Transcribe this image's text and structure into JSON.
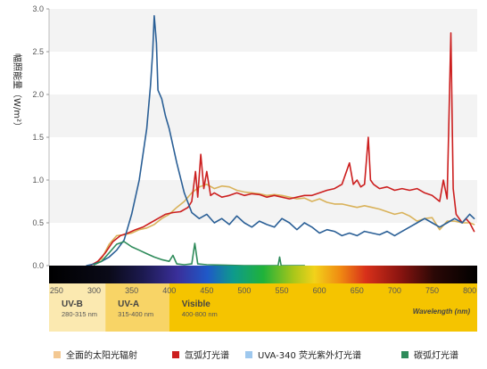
{
  "chart_data": {
    "type": "line",
    "ylabel": "幅照能量（W/m²）",
    "xlabel": "Wavelength (nm)",
    "xlim": [
      240,
      810
    ],
    "ylim": [
      0,
      3.0
    ],
    "x_ticks": [
      250,
      300,
      350,
      400,
      450,
      500,
      550,
      600,
      650,
      700,
      750,
      800
    ],
    "y_ticks": [
      "0.0",
      "0.5",
      "1.0",
      "1.5",
      "2.0",
      "2.5",
      "3.0"
    ],
    "bands": [
      {
        "name": "UV-B",
        "range": "280-315 nm",
        "from": 240,
        "to": 315,
        "color": "#fbe9b0"
      },
      {
        "name": "UV-A",
        "range": "315-400 nm",
        "from": 315,
        "to": 400,
        "color": "#f8d466"
      },
      {
        "name": "Visible",
        "range": "400-800 nm",
        "from": 400,
        "to": 810,
        "color": "#f5c400"
      }
    ],
    "legend_position": "bottom",
    "grid": "alternating horizontal bands",
    "series": [
      {
        "name": "全面的太阳光辐射",
        "color": "#d9b25a",
        "points": [
          [
            300,
            0.01
          ],
          [
            310,
            0.08
          ],
          [
            320,
            0.25
          ],
          [
            330,
            0.35
          ],
          [
            340,
            0.36
          ],
          [
            350,
            0.38
          ],
          [
            360,
            0.42
          ],
          [
            370,
            0.44
          ],
          [
            380,
            0.48
          ],
          [
            390,
            0.55
          ],
          [
            400,
            0.6
          ],
          [
            410,
            0.68
          ],
          [
            420,
            0.75
          ],
          [
            430,
            0.85
          ],
          [
            440,
            0.92
          ],
          [
            450,
            0.95
          ],
          [
            460,
            0.9
          ],
          [
            470,
            0.93
          ],
          [
            480,
            0.92
          ],
          [
            490,
            0.88
          ],
          [
            500,
            0.86
          ],
          [
            510,
            0.85
          ],
          [
            520,
            0.84
          ],
          [
            530,
            0.82
          ],
          [
            540,
            0.83
          ],
          [
            550,
            0.82
          ],
          [
            560,
            0.8
          ],
          [
            570,
            0.78
          ],
          [
            580,
            0.79
          ],
          [
            590,
            0.75
          ],
          [
            600,
            0.78
          ],
          [
            610,
            0.74
          ],
          [
            620,
            0.72
          ],
          [
            630,
            0.72
          ],
          [
            640,
            0.7
          ],
          [
            650,
            0.68
          ],
          [
            660,
            0.7
          ],
          [
            670,
            0.68
          ],
          [
            680,
            0.66
          ],
          [
            690,
            0.63
          ],
          [
            700,
            0.6
          ],
          [
            710,
            0.62
          ],
          [
            720,
            0.58
          ],
          [
            730,
            0.52
          ],
          [
            740,
            0.55
          ],
          [
            750,
            0.56
          ],
          [
            760,
            0.42
          ],
          [
            770,
            0.52
          ],
          [
            780,
            0.52
          ],
          [
            790,
            0.5
          ],
          [
            800,
            0.5
          ],
          [
            806,
            0.48
          ]
        ]
      },
      {
        "name": "氙弧灯光谱",
        "color": "#cc1f1f",
        "points": [
          [
            295,
            0.0
          ],
          [
            305,
            0.05
          ],
          [
            315,
            0.15
          ],
          [
            325,
            0.28
          ],
          [
            335,
            0.35
          ],
          [
            345,
            0.38
          ],
          [
            355,
            0.42
          ],
          [
            365,
            0.45
          ],
          [
            375,
            0.5
          ],
          [
            385,
            0.55
          ],
          [
            395,
            0.6
          ],
          [
            405,
            0.62
          ],
          [
            415,
            0.63
          ],
          [
            425,
            0.68
          ],
          [
            430,
            0.75
          ],
          [
            435,
            1.1
          ],
          [
            438,
            0.8
          ],
          [
            442,
            1.3
          ],
          [
            446,
            0.9
          ],
          [
            450,
            1.1
          ],
          [
            455,
            0.82
          ],
          [
            460,
            0.85
          ],
          [
            470,
            0.8
          ],
          [
            480,
            0.82
          ],
          [
            490,
            0.85
          ],
          [
            500,
            0.82
          ],
          [
            510,
            0.84
          ],
          [
            520,
            0.83
          ],
          [
            530,
            0.8
          ],
          [
            540,
            0.82
          ],
          [
            550,
            0.8
          ],
          [
            560,
            0.78
          ],
          [
            570,
            0.8
          ],
          [
            580,
            0.82
          ],
          [
            590,
            0.82
          ],
          [
            600,
            0.85
          ],
          [
            610,
            0.88
          ],
          [
            620,
            0.9
          ],
          [
            630,
            0.95
          ],
          [
            640,
            1.2
          ],
          [
            645,
            0.95
          ],
          [
            650,
            1.0
          ],
          [
            655,
            0.92
          ],
          [
            660,
            0.95
          ],
          [
            665,
            1.5
          ],
          [
            668,
            1.0
          ],
          [
            672,
            0.95
          ],
          [
            680,
            0.9
          ],
          [
            690,
            0.92
          ],
          [
            700,
            0.88
          ],
          [
            710,
            0.9
          ],
          [
            720,
            0.88
          ],
          [
            730,
            0.9
          ],
          [
            740,
            0.85
          ],
          [
            750,
            0.82
          ],
          [
            760,
            0.75
          ],
          [
            765,
            1.0
          ],
          [
            770,
            0.78
          ],
          [
            775,
            2.72
          ],
          [
            778,
            0.9
          ],
          [
            782,
            0.6
          ],
          [
            790,
            0.5
          ],
          [
            795,
            0.55
          ],
          [
            800,
            0.5
          ],
          [
            806,
            0.4
          ]
        ]
      },
      {
        "name": "UVA-340 荧光紫外灯光谱",
        "color": "#2a5f96",
        "points": [
          [
            290,
            0.0
          ],
          [
            300,
            0.02
          ],
          [
            310,
            0.05
          ],
          [
            320,
            0.1
          ],
          [
            330,
            0.18
          ],
          [
            340,
            0.3
          ],
          [
            350,
            0.6
          ],
          [
            360,
            1.0
          ],
          [
            365,
            1.3
          ],
          [
            370,
            1.6
          ],
          [
            375,
            2.1
          ],
          [
            378,
            2.5
          ],
          [
            380,
            2.92
          ],
          [
            383,
            2.6
          ],
          [
            385,
            2.05
          ],
          [
            390,
            1.95
          ],
          [
            395,
            1.75
          ],
          [
            400,
            1.6
          ],
          [
            410,
            1.2
          ],
          [
            420,
            0.85
          ],
          [
            430,
            0.62
          ],
          [
            440,
            0.55
          ],
          [
            450,
            0.6
          ],
          [
            460,
            0.5
          ],
          [
            470,
            0.55
          ],
          [
            480,
            0.48
          ],
          [
            490,
            0.58
          ],
          [
            500,
            0.5
          ],
          [
            510,
            0.45
          ],
          [
            520,
            0.52
          ],
          [
            530,
            0.48
          ],
          [
            540,
            0.45
          ],
          [
            550,
            0.55
          ],
          [
            560,
            0.5
          ],
          [
            570,
            0.42
          ],
          [
            580,
            0.5
          ],
          [
            590,
            0.45
          ],
          [
            600,
            0.38
          ],
          [
            610,
            0.42
          ],
          [
            620,
            0.4
          ],
          [
            630,
            0.35
          ],
          [
            640,
            0.38
          ],
          [
            650,
            0.35
          ],
          [
            660,
            0.4
          ],
          [
            670,
            0.38
          ],
          [
            680,
            0.36
          ],
          [
            690,
            0.4
          ],
          [
            700,
            0.35
          ],
          [
            710,
            0.4
          ],
          [
            720,
            0.45
          ],
          [
            730,
            0.5
          ],
          [
            740,
            0.55
          ],
          [
            750,
            0.5
          ],
          [
            760,
            0.45
          ],
          [
            770,
            0.5
          ],
          [
            780,
            0.55
          ],
          [
            790,
            0.5
          ],
          [
            800,
            0.6
          ],
          [
            806,
            0.55
          ]
        ]
      },
      {
        "name": "碳弧灯光谱",
        "color": "#2e8b5a",
        "points": [
          [
            300,
            0.01
          ],
          [
            310,
            0.05
          ],
          [
            320,
            0.15
          ],
          [
            330,
            0.25
          ],
          [
            340,
            0.28
          ],
          [
            350,
            0.22
          ],
          [
            360,
            0.18
          ],
          [
            370,
            0.14
          ],
          [
            380,
            0.1
          ],
          [
            390,
            0.07
          ],
          [
            400,
            0.05
          ],
          [
            405,
            0.12
          ],
          [
            410,
            0.02
          ],
          [
            420,
            0.01
          ],
          [
            430,
            0.02
          ],
          [
            434,
            0.26
          ],
          [
            438,
            0.02
          ],
          [
            450,
            0.01
          ],
          [
            500,
            0.0
          ],
          [
            545,
            0.0
          ],
          [
            547,
            0.1
          ],
          [
            549,
            0.0
          ],
          [
            580,
            0.0
          ]
        ]
      }
    ],
    "legend_entries": [
      {
        "label": "全面的太阳光辐射",
        "color": "#f3c892"
      },
      {
        "label": "氙弧灯光谱",
        "color": "#cc1f1f"
      },
      {
        "label": "UVA-340 荧光紫外灯光谱",
        "color": "#9ec8ee"
      },
      {
        "label": "碳弧灯光谱",
        "color": "#2e8b5a"
      }
    ]
  }
}
